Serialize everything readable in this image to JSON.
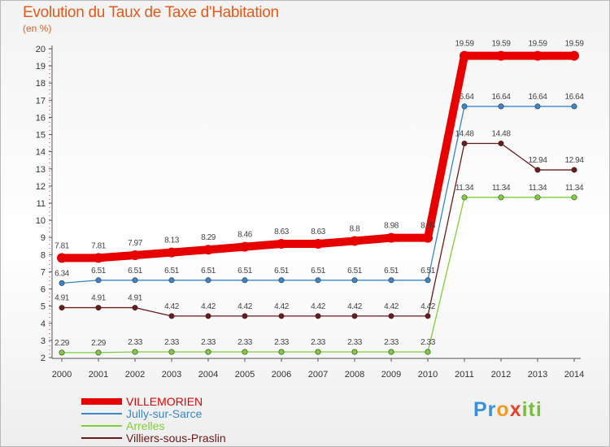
{
  "title": "Evolution du Taux de Taxe d'Habitation",
  "subtitle": "(en %)",
  "logo": {
    "text": "Proxiti",
    "parts": [
      "Pr",
      "o",
      "x",
      "iti"
    ]
  },
  "chart_data": {
    "type": "line",
    "x": [
      "2000",
      "2001",
      "2002",
      "2003",
      "2004",
      "2005",
      "2006",
      "2007",
      "2008",
      "2009",
      "2010",
      "2011",
      "2012",
      "2013",
      "2014"
    ],
    "ylim": [
      2,
      20
    ],
    "yticks": [
      2,
      3,
      4,
      5,
      6,
      7,
      8,
      9,
      10,
      11,
      12,
      13,
      14,
      15,
      16,
      17,
      18,
      19,
      20
    ],
    "grid": false,
    "legend_placement": "bottom-left",
    "series": [
      {
        "name": "VILLEMORIEN",
        "color": "#e60000",
        "bold": true,
        "values": [
          7.81,
          7.81,
          7.97,
          8.13,
          8.29,
          8.46,
          8.63,
          8.63,
          8.8,
          8.98,
          8.98,
          19.59,
          19.59,
          19.59,
          19.59
        ],
        "labels": [
          "7.81",
          "7.81",
          "7.97",
          "8.13",
          "8.29",
          "8.46",
          "8.63",
          "8.63",
          "8.8",
          "8.98",
          "8.98",
          "19.59",
          "19.59",
          "19.59",
          "19.59"
        ]
      },
      {
        "name": "Jully-sur-Sarce",
        "color": "#3a86c8",
        "bold": false,
        "values": [
          6.34,
          6.51,
          6.51,
          6.51,
          6.51,
          6.51,
          6.51,
          6.51,
          6.51,
          6.51,
          6.51,
          16.64,
          16.64,
          16.64,
          16.64
        ],
        "labels": [
          "6.34",
          "6.51",
          "6.51",
          "6.51",
          "6.51",
          "6.51",
          "6.51",
          "6.51",
          "6.51",
          "6.51",
          "6.51",
          "16.64",
          "16.64",
          "16.64",
          "16.64"
        ]
      },
      {
        "name": "Arrelles",
        "color": "#7fcf3a",
        "bold": false,
        "values": [
          2.29,
          2.29,
          2.33,
          2.33,
          2.33,
          2.33,
          2.33,
          2.33,
          2.33,
          2.33,
          2.33,
          11.34,
          11.34,
          11.34,
          11.34
        ],
        "labels": [
          "2.29",
          "2.29",
          "2.33",
          "2.33",
          "2.33",
          "2.33",
          "2.33",
          "2.33",
          "2.33",
          "2.33",
          "2.33",
          "11.34",
          "11.34",
          "11.34",
          "11.34"
        ]
      },
      {
        "name": "Villiers-sous-Praslin",
        "color": "#6b1a1a",
        "bold": false,
        "values": [
          4.91,
          4.91,
          4.91,
          4.42,
          4.42,
          4.42,
          4.42,
          4.42,
          4.42,
          4.42,
          4.42,
          14.48,
          14.48,
          12.94,
          12.94
        ],
        "labels": [
          "4.91",
          "4.91",
          "4.91",
          "4.42",
          "4.42",
          "4.42",
          "4.42",
          "4.42",
          "4.42",
          "4.42",
          "4.42",
          "14.48",
          "14.48",
          "12.94",
          "12.94"
        ]
      }
    ]
  }
}
